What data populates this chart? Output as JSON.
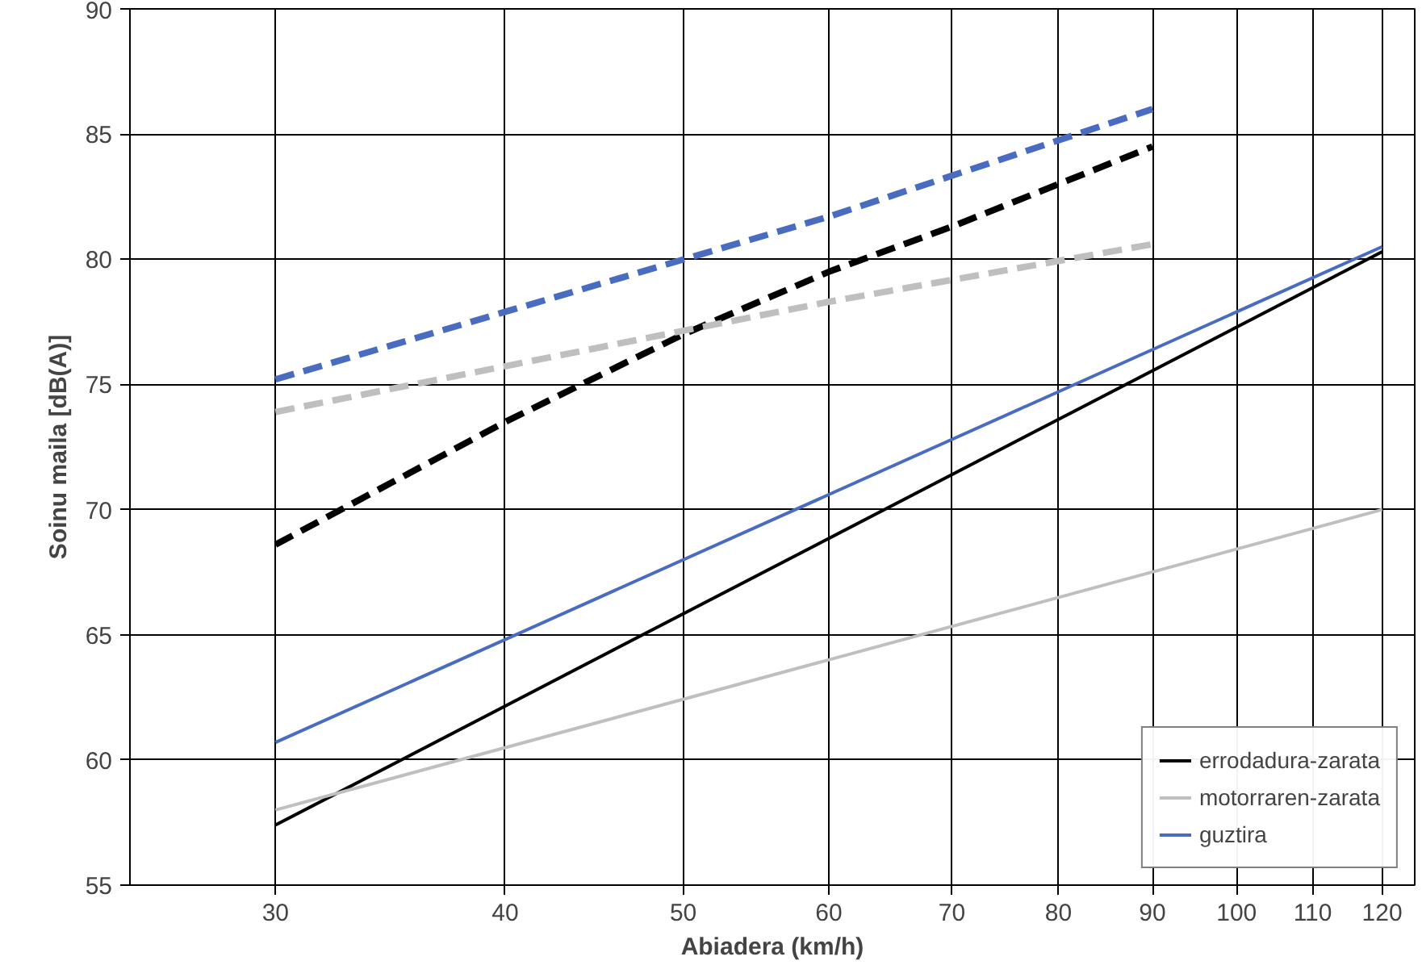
{
  "chart_data": {
    "type": "line",
    "xlabel": "Abiadera (km/h)",
    "ylabel": "Soinu maila [dB(A)]",
    "log": "x",
    "xlim": [
      25,
      125
    ],
    "ylim": [
      55,
      90
    ],
    "xticks": [
      30,
      40,
      50,
      60,
      70,
      80,
      90,
      100,
      110,
      120
    ],
    "yticks": [
      55,
      60,
      65,
      70,
      75,
      80,
      85,
      90
    ],
    "grid": true,
    "legend": "bottom right",
    "marker": "none",
    "series": [
      {
        "name": "errodadura-zarata",
        "color": "#000000",
        "x": [
          30,
          120
        ],
        "values": [
          57.4,
          80.3
        ],
        "line_style": "solid"
      },
      {
        "name": "motorraren-zarata",
        "color": "#bfbfbf",
        "x": [
          30,
          120
        ],
        "values": [
          58.0,
          70.0
        ],
        "line_style": "solid"
      },
      {
        "name": "guztira",
        "color": "#4a6cc0",
        "x": [
          30,
          120
        ],
        "values": [
          60.7,
          80.5
        ],
        "line_style": "solid"
      },
      {
        "color": "#000000",
        "x": [
          30,
          40,
          50,
          60,
          70,
          80,
          90
        ],
        "values": [
          68.6,
          73.5,
          77.0,
          79.5,
          81.3,
          83.0,
          84.5
        ],
        "line_style": "dashed"
      },
      {
        "color": "#bfbfbf",
        "x": [
          30,
          60,
          90
        ],
        "values": [
          73.9,
          78.3,
          80.6
        ],
        "line_style": "dashed"
      },
      {
        "color": "#4a6cc0",
        "x": [
          30,
          60,
          90
        ],
        "values": [
          75.2,
          81.7,
          86.0
        ],
        "line_style": "dashed"
      }
    ]
  }
}
